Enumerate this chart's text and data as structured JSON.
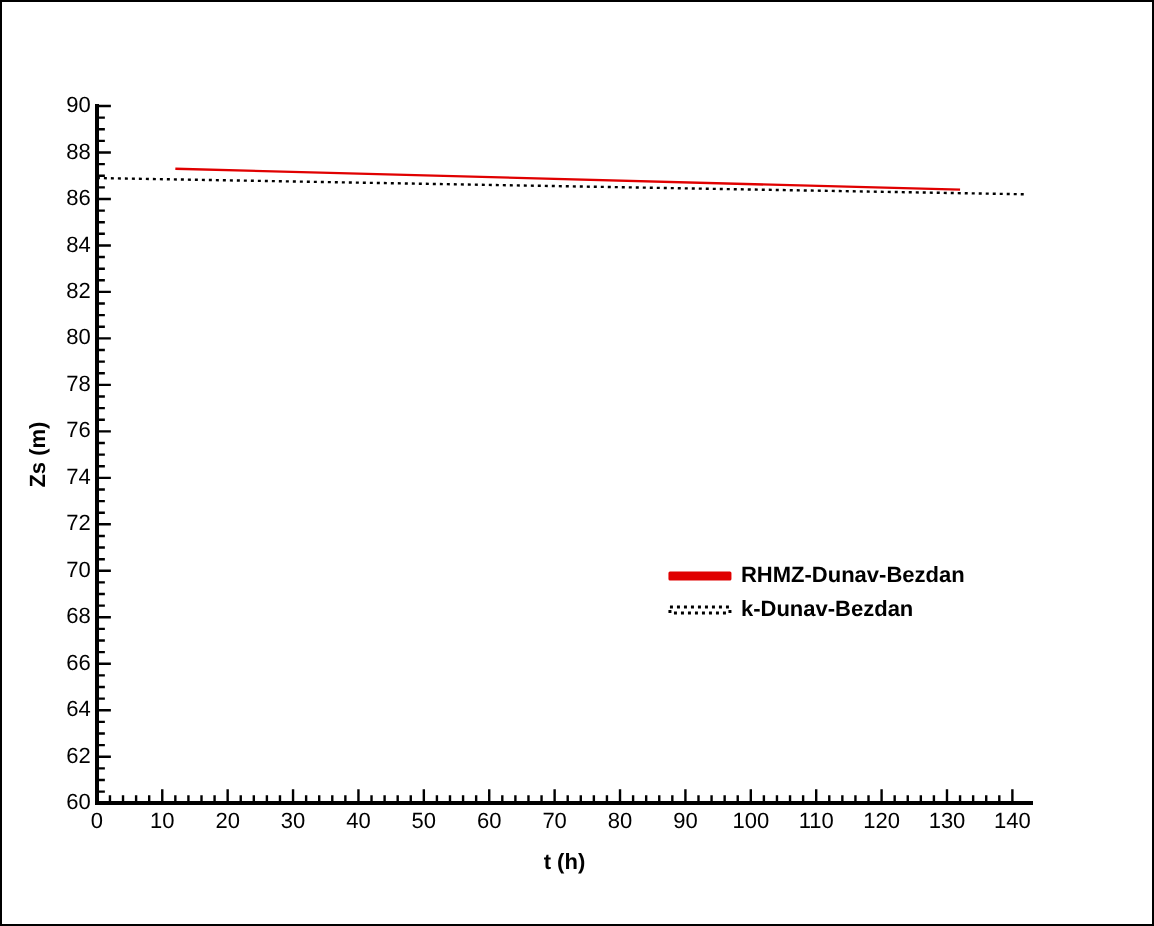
{
  "chart_data": {
    "type": "line",
    "xlabel": "t (h)",
    "ylabel": "Zs (m)",
    "xlim": [
      0,
      143
    ],
    "xticks": [
      0,
      10,
      20,
      30,
      40,
      50,
      60,
      70,
      80,
      90,
      100,
      110,
      120,
      130,
      140
    ],
    "ylim": [
      60,
      90
    ],
    "yticks": [
      60,
      62,
      64,
      66,
      68,
      70,
      72,
      74,
      76,
      78,
      80,
      82,
      84,
      86,
      88,
      90
    ],
    "series": [
      {
        "name": "RHMZ-Dunav-Bezdan",
        "color": "#e00000",
        "line_style": "solid",
        "x": [
          12,
          132
        ],
        "values": [
          87.3,
          86.4
        ]
      },
      {
        "name": "k-Dunav-Bezdan",
        "color": "#000000",
        "line_style": "dotted",
        "x": [
          0,
          142
        ],
        "values": [
          86.9,
          86.2
        ]
      }
    ],
    "grid": false,
    "legend": "center right",
    "marker": "none"
  }
}
